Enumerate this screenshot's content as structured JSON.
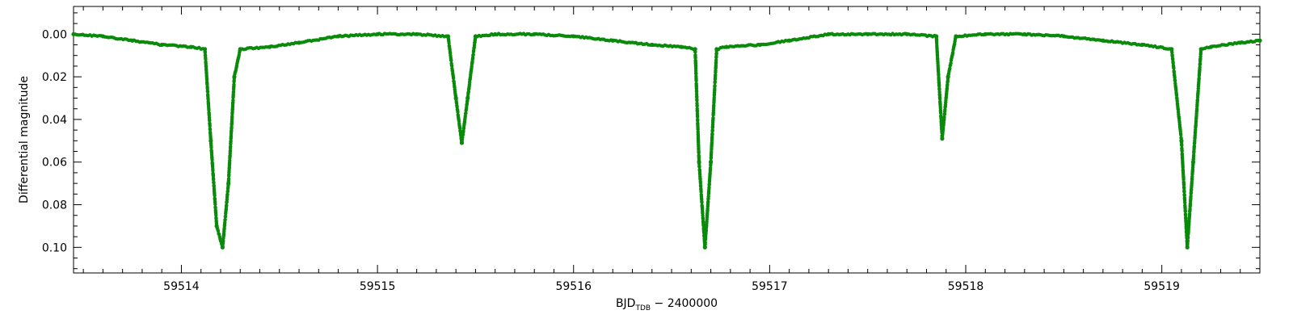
{
  "chart_data": {
    "type": "scatter",
    "title": "",
    "xlabel": "BJD",
    "xlabel_subscript": "TDB",
    "xlabel_suffix": " − 2400000",
    "ylabel": "Differential magnitude",
    "xlim": [
      59513.45,
      59519.5
    ],
    "ylim": [
      0.112,
      -0.013
    ],
    "y_inverted": true,
    "grid": false,
    "legend": "none",
    "marker_color": "#0a8a0a",
    "x_ticks": [
      59514,
      59515,
      59516,
      59517,
      59518,
      59519
    ],
    "x_tick_labels": [
      "59514",
      "59515",
      "59516",
      "59517",
      "59518",
      "59519"
    ],
    "y_ticks": [
      0.0,
      0.02,
      0.04,
      0.06,
      0.08,
      0.1
    ],
    "y_tick_labels": [
      "0.00",
      "0.02",
      "0.04",
      "0.06",
      "0.08",
      "0.10"
    ],
    "series": [
      {
        "x": [
          59513.45,
          59513.6,
          59513.75,
          59513.9,
          59514.05,
          59514.12,
          59514.15,
          59514.18,
          59514.21,
          59514.24,
          59514.27,
          59514.3,
          59514.45,
          59514.6,
          59514.8,
          59515.0,
          59515.2,
          59515.36,
          59515.4,
          59515.43,
          59515.46,
          59515.5,
          59515.6,
          59515.8,
          59516.0,
          59516.2,
          59516.4,
          59516.55,
          59516.62,
          59516.64,
          59516.67,
          59516.7,
          59516.73,
          59516.78,
          59516.95,
          59517.1,
          59517.3,
          59517.5,
          59517.7,
          59517.85,
          59517.88,
          59517.91,
          59517.95,
          59518.1,
          59518.3,
          59518.5,
          59518.7,
          59518.9,
          59519.05,
          59519.1,
          59519.13,
          59519.16,
          59519.2,
          59519.25,
          59519.4,
          59519.5
        ],
        "y": [
          0.0,
          0.001,
          0.003,
          0.005,
          0.006,
          0.007,
          0.05,
          0.09,
          0.1,
          0.07,
          0.02,
          0.007,
          0.006,
          0.004,
          0.001,
          0.0,
          0.0,
          0.001,
          0.03,
          0.051,
          0.03,
          0.001,
          0.0,
          0.0,
          0.001,
          0.003,
          0.005,
          0.006,
          0.007,
          0.06,
          0.1,
          0.06,
          0.007,
          0.006,
          0.005,
          0.003,
          0.0,
          0.0,
          0.0,
          0.001,
          0.049,
          0.02,
          0.001,
          0.0,
          0.0,
          0.001,
          0.003,
          0.005,
          0.007,
          0.05,
          0.1,
          0.06,
          0.007,
          0.006,
          0.004,
          0.003
        ]
      }
    ]
  }
}
